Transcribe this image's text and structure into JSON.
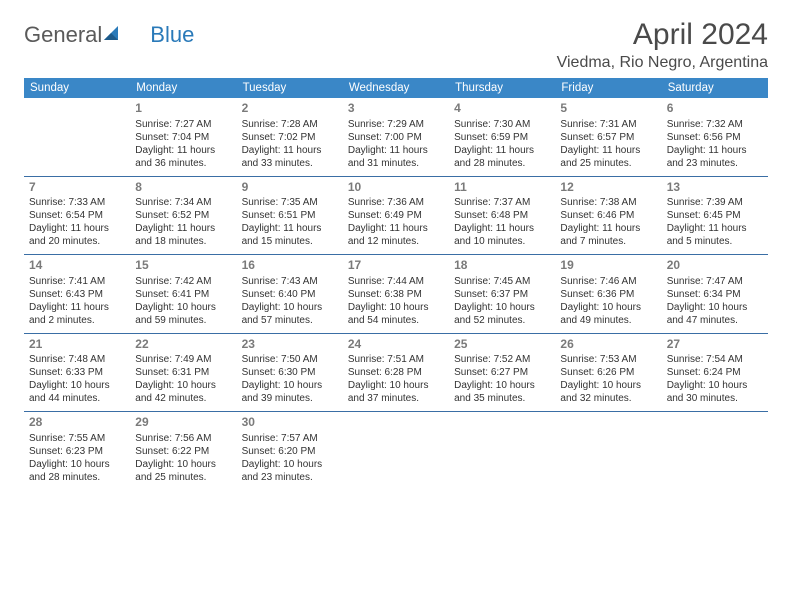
{
  "logo": {
    "text1": "General",
    "text2": "Blue"
  },
  "title": "April 2024",
  "location": "Viedma, Rio Negro, Argentina",
  "colors": {
    "headerBg": "#3a87c7",
    "headerText": "#ffffff",
    "rowBorder": "#3a6ea5",
    "dayNum": "#7a7a7a",
    "body": "#333333",
    "logoGray": "#5a5a5a",
    "logoBlue": "#2a7ab9"
  },
  "weekdays": [
    "Sunday",
    "Monday",
    "Tuesday",
    "Wednesday",
    "Thursday",
    "Friday",
    "Saturday"
  ],
  "weeks": [
    [
      null,
      {
        "n": "1",
        "sr": "Sunrise: 7:27 AM",
        "ss": "Sunset: 7:04 PM",
        "d1": "Daylight: 11 hours",
        "d2": "and 36 minutes."
      },
      {
        "n": "2",
        "sr": "Sunrise: 7:28 AM",
        "ss": "Sunset: 7:02 PM",
        "d1": "Daylight: 11 hours",
        "d2": "and 33 minutes."
      },
      {
        "n": "3",
        "sr": "Sunrise: 7:29 AM",
        "ss": "Sunset: 7:00 PM",
        "d1": "Daylight: 11 hours",
        "d2": "and 31 minutes."
      },
      {
        "n": "4",
        "sr": "Sunrise: 7:30 AM",
        "ss": "Sunset: 6:59 PM",
        "d1": "Daylight: 11 hours",
        "d2": "and 28 minutes."
      },
      {
        "n": "5",
        "sr": "Sunrise: 7:31 AM",
        "ss": "Sunset: 6:57 PM",
        "d1": "Daylight: 11 hours",
        "d2": "and 25 minutes."
      },
      {
        "n": "6",
        "sr": "Sunrise: 7:32 AM",
        "ss": "Sunset: 6:56 PM",
        "d1": "Daylight: 11 hours",
        "d2": "and 23 minutes."
      }
    ],
    [
      {
        "n": "7",
        "sr": "Sunrise: 7:33 AM",
        "ss": "Sunset: 6:54 PM",
        "d1": "Daylight: 11 hours",
        "d2": "and 20 minutes."
      },
      {
        "n": "8",
        "sr": "Sunrise: 7:34 AM",
        "ss": "Sunset: 6:52 PM",
        "d1": "Daylight: 11 hours",
        "d2": "and 18 minutes."
      },
      {
        "n": "9",
        "sr": "Sunrise: 7:35 AM",
        "ss": "Sunset: 6:51 PM",
        "d1": "Daylight: 11 hours",
        "d2": "and 15 minutes."
      },
      {
        "n": "10",
        "sr": "Sunrise: 7:36 AM",
        "ss": "Sunset: 6:49 PM",
        "d1": "Daylight: 11 hours",
        "d2": "and 12 minutes."
      },
      {
        "n": "11",
        "sr": "Sunrise: 7:37 AM",
        "ss": "Sunset: 6:48 PM",
        "d1": "Daylight: 11 hours",
        "d2": "and 10 minutes."
      },
      {
        "n": "12",
        "sr": "Sunrise: 7:38 AM",
        "ss": "Sunset: 6:46 PM",
        "d1": "Daylight: 11 hours",
        "d2": "and 7 minutes."
      },
      {
        "n": "13",
        "sr": "Sunrise: 7:39 AM",
        "ss": "Sunset: 6:45 PM",
        "d1": "Daylight: 11 hours",
        "d2": "and 5 minutes."
      }
    ],
    [
      {
        "n": "14",
        "sr": "Sunrise: 7:41 AM",
        "ss": "Sunset: 6:43 PM",
        "d1": "Daylight: 11 hours",
        "d2": "and 2 minutes."
      },
      {
        "n": "15",
        "sr": "Sunrise: 7:42 AM",
        "ss": "Sunset: 6:41 PM",
        "d1": "Daylight: 10 hours",
        "d2": "and 59 minutes."
      },
      {
        "n": "16",
        "sr": "Sunrise: 7:43 AM",
        "ss": "Sunset: 6:40 PM",
        "d1": "Daylight: 10 hours",
        "d2": "and 57 minutes."
      },
      {
        "n": "17",
        "sr": "Sunrise: 7:44 AM",
        "ss": "Sunset: 6:38 PM",
        "d1": "Daylight: 10 hours",
        "d2": "and 54 minutes."
      },
      {
        "n": "18",
        "sr": "Sunrise: 7:45 AM",
        "ss": "Sunset: 6:37 PM",
        "d1": "Daylight: 10 hours",
        "d2": "and 52 minutes."
      },
      {
        "n": "19",
        "sr": "Sunrise: 7:46 AM",
        "ss": "Sunset: 6:36 PM",
        "d1": "Daylight: 10 hours",
        "d2": "and 49 minutes."
      },
      {
        "n": "20",
        "sr": "Sunrise: 7:47 AM",
        "ss": "Sunset: 6:34 PM",
        "d1": "Daylight: 10 hours",
        "d2": "and 47 minutes."
      }
    ],
    [
      {
        "n": "21",
        "sr": "Sunrise: 7:48 AM",
        "ss": "Sunset: 6:33 PM",
        "d1": "Daylight: 10 hours",
        "d2": "and 44 minutes."
      },
      {
        "n": "22",
        "sr": "Sunrise: 7:49 AM",
        "ss": "Sunset: 6:31 PM",
        "d1": "Daylight: 10 hours",
        "d2": "and 42 minutes."
      },
      {
        "n": "23",
        "sr": "Sunrise: 7:50 AM",
        "ss": "Sunset: 6:30 PM",
        "d1": "Daylight: 10 hours",
        "d2": "and 39 minutes."
      },
      {
        "n": "24",
        "sr": "Sunrise: 7:51 AM",
        "ss": "Sunset: 6:28 PM",
        "d1": "Daylight: 10 hours",
        "d2": "and 37 minutes."
      },
      {
        "n": "25",
        "sr": "Sunrise: 7:52 AM",
        "ss": "Sunset: 6:27 PM",
        "d1": "Daylight: 10 hours",
        "d2": "and 35 minutes."
      },
      {
        "n": "26",
        "sr": "Sunrise: 7:53 AM",
        "ss": "Sunset: 6:26 PM",
        "d1": "Daylight: 10 hours",
        "d2": "and 32 minutes."
      },
      {
        "n": "27",
        "sr": "Sunrise: 7:54 AM",
        "ss": "Sunset: 6:24 PM",
        "d1": "Daylight: 10 hours",
        "d2": "and 30 minutes."
      }
    ],
    [
      {
        "n": "28",
        "sr": "Sunrise: 7:55 AM",
        "ss": "Sunset: 6:23 PM",
        "d1": "Daylight: 10 hours",
        "d2": "and 28 minutes."
      },
      {
        "n": "29",
        "sr": "Sunrise: 7:56 AM",
        "ss": "Sunset: 6:22 PM",
        "d1": "Daylight: 10 hours",
        "d2": "and 25 minutes."
      },
      {
        "n": "30",
        "sr": "Sunrise: 7:57 AM",
        "ss": "Sunset: 6:20 PM",
        "d1": "Daylight: 10 hours",
        "d2": "and 23 minutes."
      },
      null,
      null,
      null,
      null
    ]
  ]
}
